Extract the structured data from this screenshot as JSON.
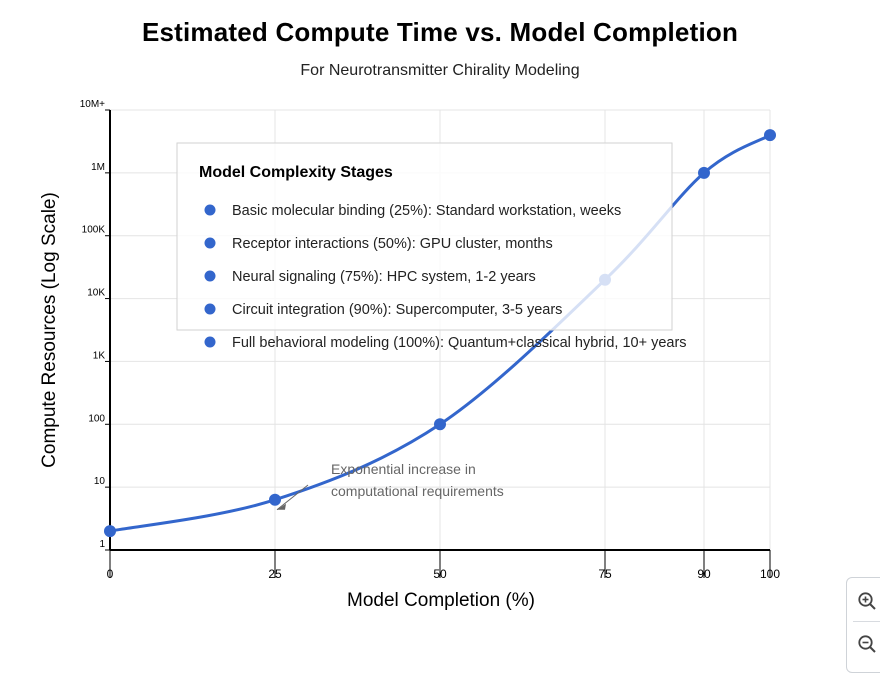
{
  "chart_data": {
    "type": "line",
    "title": "Estimated Compute Time vs. Model Completion",
    "subtitle": "For Neurotransmitter Chirality Modeling",
    "xlabel": "Model Completion (%)",
    "ylabel": "Compute Resources (Log Scale)",
    "xlim": [
      0,
      100
    ],
    "ylim": [
      0,
      7
    ],
    "y_scale": "log10",
    "x_ticks": [
      0,
      25,
      50,
      75,
      90,
      100
    ],
    "x_tick_labels": [
      "0",
      "25",
      "50",
      "75",
      "90",
      "100"
    ],
    "y_ticks": [
      0,
      1,
      2,
      3,
      4,
      5,
      6,
      7
    ],
    "y_tick_labels": [
      "1",
      "10",
      "100",
      "1K",
      "10K",
      "100K",
      "1M",
      "10M+"
    ],
    "grid": true,
    "series": [
      {
        "name": "Compute Resources",
        "color": "#3366cc",
        "x": [
          0,
          25,
          50,
          75,
          90,
          100
        ],
        "y_log10": [
          0.3,
          0.8,
          2.0,
          4.3,
          6.0,
          6.6
        ]
      }
    ],
    "annotation": {
      "lines": [
        "Exponential increase in",
        "computational requirements"
      ],
      "points_to": {
        "x": 25,
        "y_log10": 0.8
      }
    },
    "legend": {
      "title": "Model Complexity Stages",
      "placement": "top-left",
      "dot_color": "#3366cc",
      "items": [
        "Basic molecular binding (25%): Standard workstation, weeks",
        "Receptor interactions (50%): GPU cluster, months",
        "Neural signaling (75%): HPC system, 1-2 years",
        "Circuit integration (90%): Supercomputer, 3-5 years",
        "Full behavioral modeling (100%): Quantum+classical hybrid, 10+ years"
      ]
    }
  },
  "zoom": {
    "in_icon": "zoom-in-icon",
    "out_icon": "zoom-out-icon"
  }
}
